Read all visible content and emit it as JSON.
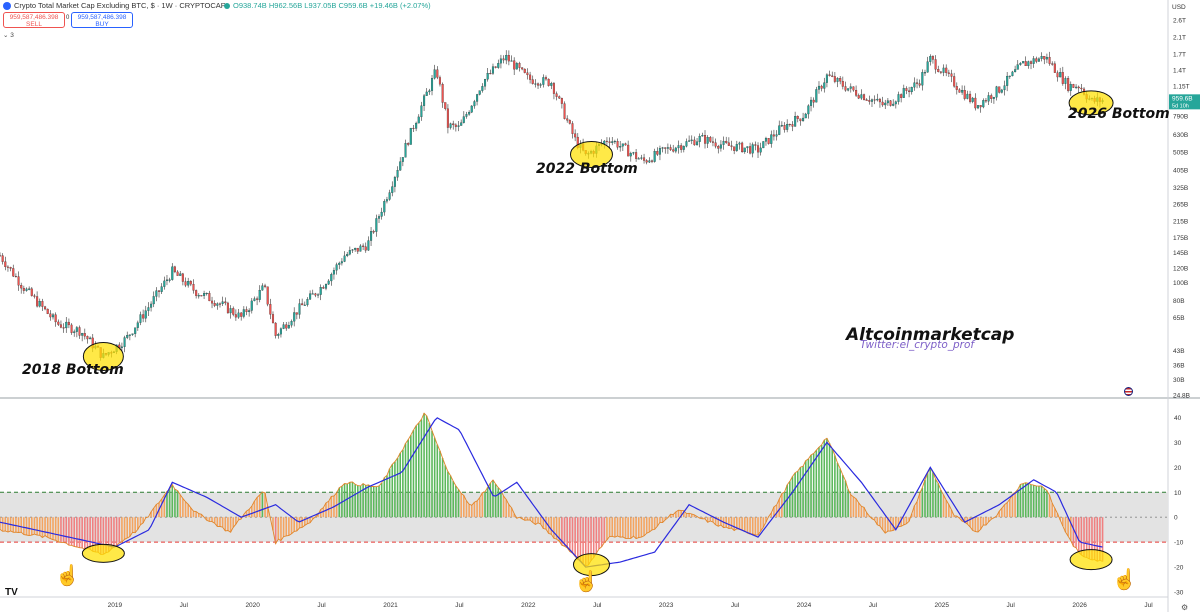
{
  "header": {
    "title": "Crypto Total Market Cap Excluding BTC, $ · 1W · CRYPTOCAP",
    "ohlc": "O938.74B H962.56B L937.05B C959.6B +19.46B (+2.07%)",
    "sell_value": "959,587,486.398",
    "sell_label": "SELL",
    "mid_value": "0",
    "buy_value": "959,587,486.398",
    "buy_label": "BUY",
    "indicator_count": "3"
  },
  "price_axis": {
    "currency": "USD",
    "labels": [
      "2.6T",
      "2.1T",
      "1.7T",
      "1.4T",
      "1.15T",
      "959.6B",
      "790B",
      "630B",
      "505B",
      "405B",
      "325B",
      "265B",
      "215B",
      "175B",
      "145B",
      "120B",
      "100B",
      "80B",
      "65B",
      "43B",
      "36B",
      "30B",
      "24.8B"
    ],
    "current_price": "959.6B",
    "current_time": "5d 10h"
  },
  "osc_axis": {
    "labels": [
      "40",
      "30",
      "20",
      "10",
      "0",
      "-10",
      "-20",
      "-30"
    ]
  },
  "time_axis": {
    "labels": [
      "2019",
      "Jul",
      "2020",
      "Jul",
      "2021",
      "Jul",
      "2022",
      "Jul",
      "2023",
      "Jul",
      "2024",
      "Jul",
      "2025",
      "Jul",
      "2026",
      "Jul"
    ]
  },
  "annotations": {
    "bottom_2018": "2018 Bottom",
    "bottom_2022": "2022 Bottom",
    "bottom_2026": "2026 Bottom",
    "watermark": "Altcoinmarketcap",
    "twitter": "Twitter:el_crypto_prof"
  },
  "colors": {
    "up": "#26a69a",
    "down": "#ef5350",
    "histo_up": "#5cb85c",
    "histo_down": "#f08080",
    "signal": "#2a2adf",
    "ellipse": "#ffe000"
  },
  "chart_data": [
    {
      "type": "candlestick",
      "title": "Crypto Total Market Cap Excluding BTC, $ · 1W · CRYPTOCAP",
      "scale": "log",
      "ylim": [
        24.8,
        2600
      ],
      "x_range": [
        "2018-03",
        "2026-08"
      ],
      "approx_path": [
        [
          "2018-03",
          140
        ],
        [
          "2018-05",
          95
        ],
        [
          "2018-08",
          60
        ],
        [
          "2018-10",
          55
        ],
        [
          "2018-12",
          40
        ],
        [
          "2019-02",
          50
        ],
        [
          "2019-04",
          75
        ],
        [
          "2019-06",
          115
        ],
        [
          "2019-08",
          90
        ],
        [
          "2019-10",
          78
        ],
        [
          "2019-12",
          65
        ],
        [
          "2020-02",
          95
        ],
        [
          "2020-03",
          52
        ],
        [
          "2020-05",
          72
        ],
        [
          "2020-07",
          95
        ],
        [
          "2020-09",
          140
        ],
        [
          "2020-11",
          160
        ],
        [
          "2021-01",
          330
        ],
        [
          "2021-03",
          700
        ],
        [
          "2021-05",
          1400
        ],
        [
          "2021-06",
          700
        ],
        [
          "2021-07",
          680
        ],
        [
          "2021-09",
          1200
        ],
        [
          "2021-11",
          1650
        ],
        [
          "2022-01",
          1250
        ],
        [
          "2022-03",
          1200
        ],
        [
          "2022-05",
          600
        ],
        [
          "2022-06",
          480
        ],
        [
          "2022-08",
          600
        ],
        [
          "2022-11",
          450
        ],
        [
          "2023-01",
          520
        ],
        [
          "2023-04",
          600
        ],
        [
          "2023-06",
          550
        ],
        [
          "2023-09",
          520
        ],
        [
          "2023-11",
          680
        ],
        [
          "2024-01",
          800
        ],
        [
          "2024-03",
          1300
        ],
        [
          "2024-05",
          1100
        ],
        [
          "2024-08",
          900
        ],
        [
          "2024-11",
          1200
        ],
        [
          "2024-12",
          1600
        ],
        [
          "2025-02",
          1200
        ],
        [
          "2025-04",
          900
        ],
        [
          "2025-06",
          1100
        ],
        [
          "2025-08",
          1500
        ],
        [
          "2025-10",
          1650
        ],
        [
          "2025-12",
          1150
        ],
        [
          "2026-01",
          1150
        ],
        [
          "2026-02",
          950
        ],
        [
          "2026-03",
          959.6
        ]
      ]
    },
    {
      "type": "bar",
      "name": "oscillator",
      "ylim": [
        -30,
        45
      ],
      "levels": [
        10,
        0,
        -10
      ],
      "approx_histogram": [
        [
          "2018-03",
          -5
        ],
        [
          "2018-07",
          -8
        ],
        [
          "2018-12",
          -15
        ],
        [
          "2019-03",
          -5
        ],
        [
          "2019-06",
          13
        ],
        [
          "2019-08",
          2
        ],
        [
          "2019-11",
          -6
        ],
        [
          "2020-02",
          11
        ],
        [
          "2020-03",
          -10
        ],
        [
          "2020-06",
          -2
        ],
        [
          "2020-09",
          14
        ],
        [
          "2020-12",
          12
        ],
        [
          "2021-02",
          27
        ],
        [
          "2021-04",
          42
        ],
        [
          "2021-06",
          18
        ],
        [
          "2021-08",
          4
        ],
        [
          "2021-10",
          15
        ],
        [
          "2021-12",
          0
        ],
        [
          "2022-02",
          -3
        ],
        [
          "2022-05",
          -15
        ],
        [
          "2022-06",
          -20
        ],
        [
          "2022-08",
          -8
        ],
        [
          "2022-11",
          -8
        ],
        [
          "2023-02",
          3
        ],
        [
          "2023-06",
          -4
        ],
        [
          "2023-09",
          -7
        ],
        [
          "2023-12",
          16
        ],
        [
          "2024-03",
          32
        ],
        [
          "2024-05",
          10
        ],
        [
          "2024-08",
          -6
        ],
        [
          "2024-10",
          -3
        ],
        [
          "2024-12",
          20
        ],
        [
          "2025-02",
          1
        ],
        [
          "2025-04",
          -6
        ],
        [
          "2025-06",
          2
        ],
        [
          "2025-08",
          14
        ],
        [
          "2025-10",
          12
        ],
        [
          "2025-12",
          -8
        ],
        [
          "2026-01",
          -15
        ],
        [
          "2026-03",
          -18
        ]
      ],
      "approx_signal": [
        [
          "2018-03",
          -2
        ],
        [
          "2018-09",
          -8
        ],
        [
          "2019-01",
          -12
        ],
        [
          "2019-04",
          -5
        ],
        [
          "2019-06",
          14
        ],
        [
          "2019-09",
          8
        ],
        [
          "2019-12",
          0
        ],
        [
          "2020-03",
          5
        ],
        [
          "2020-05",
          -2
        ],
        [
          "2020-08",
          4
        ],
        [
          "2020-11",
          12
        ],
        [
          "2021-02",
          18
        ],
        [
          "2021-05",
          40
        ],
        [
          "2021-07",
          35
        ],
        [
          "2021-10",
          8
        ],
        [
          "2021-12",
          14
        ],
        [
          "2022-03",
          -5
        ],
        [
          "2022-06",
          -20
        ],
        [
          "2022-09",
          -18
        ],
        [
          "2022-12",
          -14
        ],
        [
          "2023-03",
          5
        ],
        [
          "2023-06",
          -2
        ],
        [
          "2023-09",
          -8
        ],
        [
          "2023-12",
          10
        ],
        [
          "2024-03",
          30
        ],
        [
          "2024-06",
          14
        ],
        [
          "2024-09",
          -5
        ],
        [
          "2024-12",
          20
        ],
        [
          "2025-03",
          -2
        ],
        [
          "2025-06",
          5
        ],
        [
          "2025-09",
          15
        ],
        [
          "2025-11",
          10
        ],
        [
          "2026-01",
          -10
        ],
        [
          "2026-03",
          -12
        ]
      ]
    }
  ]
}
